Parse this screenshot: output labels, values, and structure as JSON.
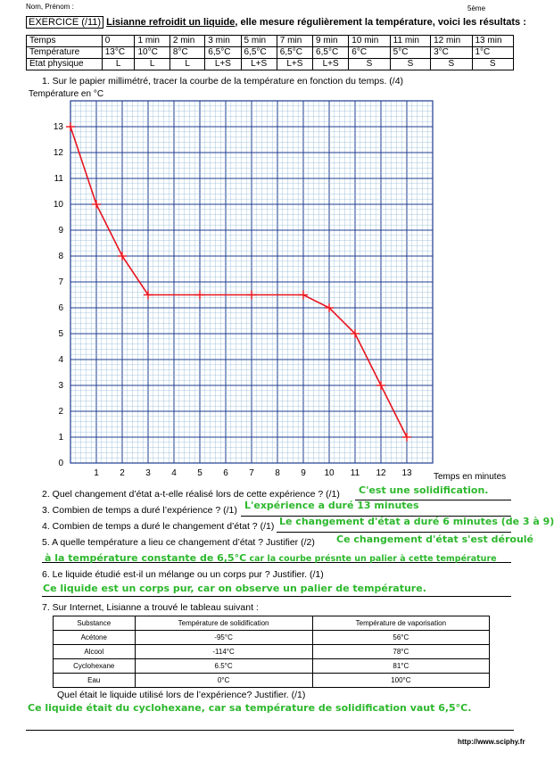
{
  "header": {
    "name_label": "Nom, Prénom :",
    "class_label": "5ème",
    "exercise_tag": "EXERCICE (/11)",
    "exercise_title": "Lisianne refroidit un liquide",
    "exercise_rest": ", elle mesure régulièrement la température, voici les résultats :"
  },
  "table": {
    "row_labels": [
      "Temps",
      "Température",
      "Etat physique"
    ],
    "times": [
      "0",
      "1 min",
      "2 min",
      "3 min",
      "5 min",
      "7 min",
      "9 min",
      "10 min",
      "11 min",
      "12 min",
      "13 min"
    ],
    "temperatures": [
      "13°C",
      "10°C",
      "8°C",
      "6,5°C",
      "6,5°C",
      "6,5°C",
      "6,5°C",
      "6°C",
      "5°C",
      "3°C",
      "1°C"
    ],
    "states": [
      "L",
      "L",
      "L",
      "L+S",
      "L+S",
      "L+S",
      "L+S",
      "S",
      "S",
      "S",
      "S"
    ]
  },
  "q1": "1.    Sur le papier millimétré, tracer la courbe de la température en fonction du temps. (/4)",
  "chart_data": {
    "type": "line",
    "ylabel": "Température en °C",
    "xlabel": "Temps en minutes",
    "xlim": [
      0,
      14
    ],
    "ylim": [
      0,
      14
    ],
    "x_ticks": [
      "1",
      "2",
      "3",
      "4",
      "5",
      "6",
      "7",
      "8",
      "9",
      "10",
      "11",
      "12",
      "13"
    ],
    "y_ticks": [
      "0",
      "1",
      "2",
      "3",
      "4",
      "5",
      "6",
      "7",
      "8",
      "9",
      "10",
      "11",
      "12",
      "13"
    ],
    "grid": true,
    "series": [
      {
        "x": [
          0,
          1,
          2,
          3,
          5,
          7,
          9,
          10,
          11,
          12,
          13
        ],
        "values": [
          13,
          10,
          8,
          6.5,
          6.5,
          6.5,
          6.5,
          6,
          5,
          3,
          1
        ],
        "color": "#e8141e"
      }
    ]
  },
  "questions": {
    "q2": "2.    Quel changement d’état a-t-elle réalisé lors de cette expérience ? (/1)",
    "a2": "C'est une solidification.",
    "q3": "3.    Combien de temps a duré l’expérience ? (/1)",
    "a3": "L'expérience a duré 13 minutes",
    "q4": "4.    Combien de temps a duré le changement d’état ? (/1)",
    "a4": "Le changement d'état a duré 6 minutes (de 3 à 9)",
    "q5": "5.    A quelle température a lieu ce changement d’état ? Justifier (/2)",
    "a5_line1": "Ce changement d'état s'est déroulé",
    "a5_line2": "à la température constante de 6,5°C",
    "a5_line2_small": " car la courbe présnte un palier à cette température",
    "q6": "6.    Le liquide étudié est-il un mélange ou un corps pur ? Justifier. (/1)",
    "a6": "Ce liquide est un corps pur, car on observe un palier de température.",
    "q7": "7.    Sur Internet, Lisianne a trouvé le tableau suivant :",
    "q8": "Quel était le liquide utilisé lors de l’expérience? Justifier. (/1)",
    "a8": "Ce liquide était du cyclohexane, car sa température de solidification vaut 6,5°C."
  },
  "substances": {
    "headers": [
      "Substance",
      "Température de solidification",
      "Température de vaporisation"
    ],
    "rows": [
      [
        "Acétone",
        "-95°C",
        "56°C"
      ],
      [
        "Alcool",
        "-114°C",
        "78°C"
      ],
      [
        "Cyclohexane",
        "6.5°C",
        "81°C"
      ],
      [
        "Eau",
        "0°C",
        "100°C"
      ]
    ]
  },
  "footer": {
    "url": "http://www.sciphy.fr"
  }
}
